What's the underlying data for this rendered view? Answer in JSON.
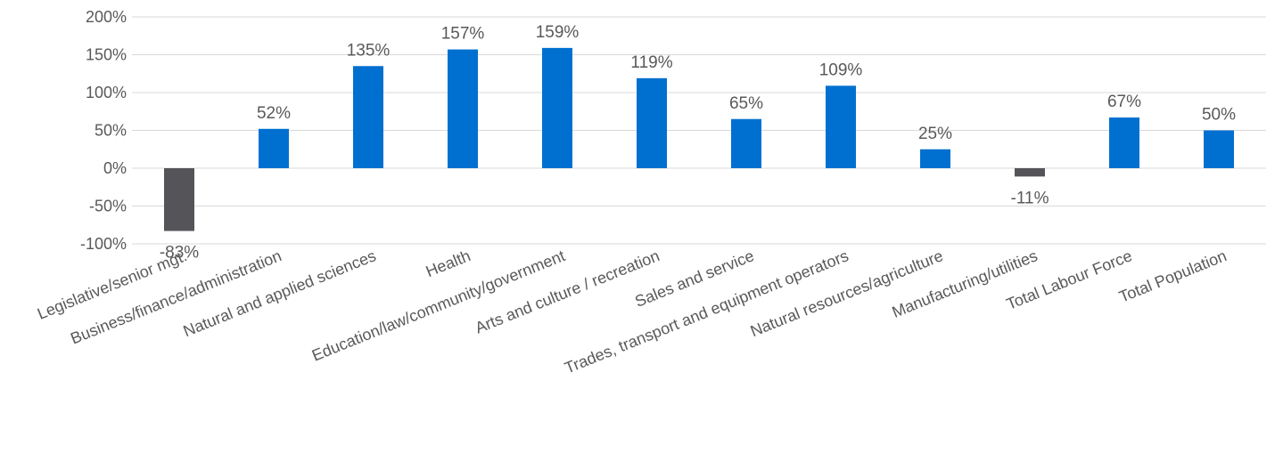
{
  "chart_data": {
    "type": "bar",
    "title": "",
    "xlabel": "",
    "ylabel": "",
    "ylim": [
      -100,
      200
    ],
    "yticks": [
      -100,
      -50,
      0,
      50,
      100,
      150,
      200
    ],
    "ytick_labels": [
      "-100%",
      "-50%",
      "0%",
      "50%",
      "100%",
      "150%",
      "200%"
    ],
    "grid": true,
    "legend": "none",
    "categories": [
      "Legislative/senior mgt.",
      "Business/finance/administration",
      "Natural and applied sciences",
      "Health",
      "Education/law/community/government",
      "Arts and culture / recreation",
      "Sales and service",
      "Trades, transport and equipment operators",
      "Natural resources/agriculture",
      "Manufacturing/utilities",
      "Total Labour Force",
      "Total Population"
    ],
    "values": [
      -83,
      52,
      135,
      157,
      159,
      119,
      65,
      109,
      25,
      -11,
      67,
      50
    ],
    "value_labels": [
      "-83%",
      "52%",
      "135%",
      "157%",
      "159%",
      "119%",
      "65%",
      "109%",
      "25%",
      "-11%",
      "67%",
      "50%"
    ],
    "colors": {
      "positive": "#0070d0",
      "negative": "#555559",
      "grid": "#d9d9d9",
      "text": "#595959"
    }
  }
}
